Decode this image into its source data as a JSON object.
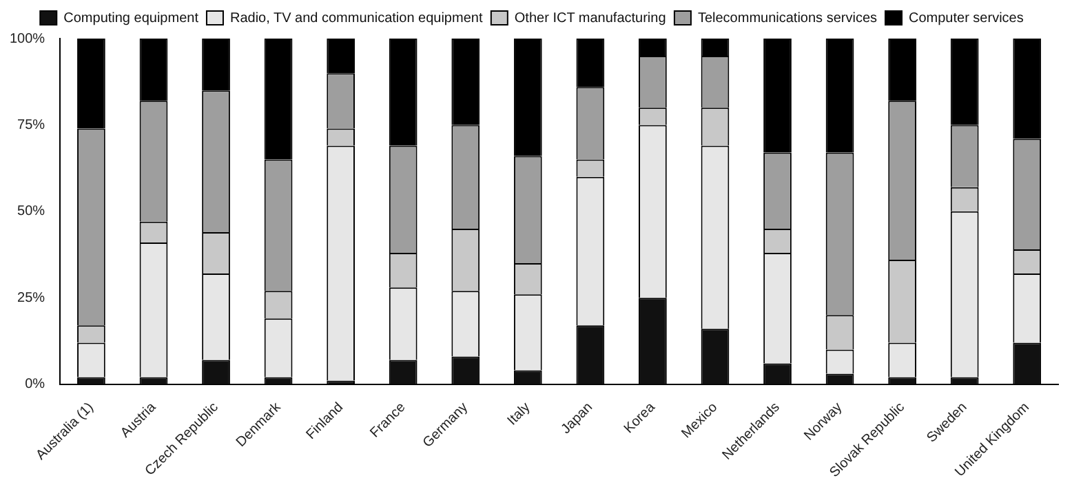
{
  "chart_data": {
    "type": "bar",
    "stacked": true,
    "categories": [
      "Australia (1)",
      "Austria",
      "Czech Republic",
      "Denmark",
      "Finland",
      "France",
      "Germany",
      "Italy",
      "Japan",
      "Korea",
      "Mexico",
      "Netherlands",
      "Norway",
      "Slovak Republic",
      "Sweden",
      "United Kingdom"
    ],
    "series": [
      {
        "name": "Computing equipment",
        "color": "#111111",
        "values": [
          2,
          2,
          7,
          2,
          1,
          7,
          8,
          4,
          17,
          25,
          16,
          6,
          3,
          2,
          2,
          12
        ]
      },
      {
        "name": "Radio, TV and communication equipment",
        "color": "#e6e6e6",
        "values": [
          10,
          39,
          25,
          17,
          68,
          21,
          19,
          22,
          43,
          50,
          53,
          32,
          7,
          10,
          48,
          20
        ]
      },
      {
        "name": "Other ICT manufacturing",
        "color": "#c8c8c8",
        "values": [
          5,
          6,
          12,
          8,
          5,
          10,
          18,
          9,
          5,
          5,
          11,
          7,
          10,
          24,
          7,
          7
        ]
      },
      {
        "name": "Telecommunications services",
        "color": "#9e9e9e",
        "values": [
          57,
          35,
          41,
          38,
          16,
          31,
          30,
          31,
          21,
          15,
          15,
          22,
          47,
          46,
          18,
          32
        ]
      },
      {
        "name": "Computer services",
        "color": "#000000",
        "values": [
          26,
          18,
          15,
          35,
          10,
          31,
          25,
          34,
          14,
          5,
          5,
          33,
          33,
          18,
          25,
          29
        ]
      }
    ],
    "ylim": [
      0,
      100
    ],
    "yticks": [
      {
        "value": 0,
        "label": "0%"
      },
      {
        "value": 25,
        "label": "25%"
      },
      {
        "value": 50,
        "label": "50%"
      },
      {
        "value": 75,
        "label": "75%"
      },
      {
        "value": 100,
        "label": "100%"
      }
    ],
    "grid": false,
    "legend": "top"
  }
}
